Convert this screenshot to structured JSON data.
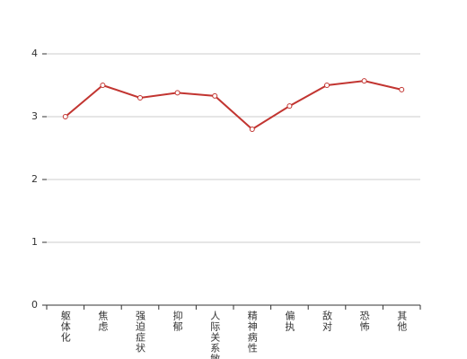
{
  "chart_data": {
    "type": "line",
    "categories": [
      "躯体化",
      "焦虑",
      "强迫症状",
      "抑郁",
      "人际关系敏感",
      "精神病性",
      "偏执",
      "敌对",
      "恐怖",
      "其他"
    ],
    "series": [
      {
        "color": "#c23531",
        "values": [
          3.0,
          3.5,
          3.3,
          3.38,
          3.33,
          2.8,
          3.17,
          3.5,
          3.57,
          3.43
        ]
      }
    ],
    "ylim": [
      0,
      4
    ],
    "yticks": [
      0,
      1,
      2,
      3,
      4
    ],
    "grid": true
  }
}
